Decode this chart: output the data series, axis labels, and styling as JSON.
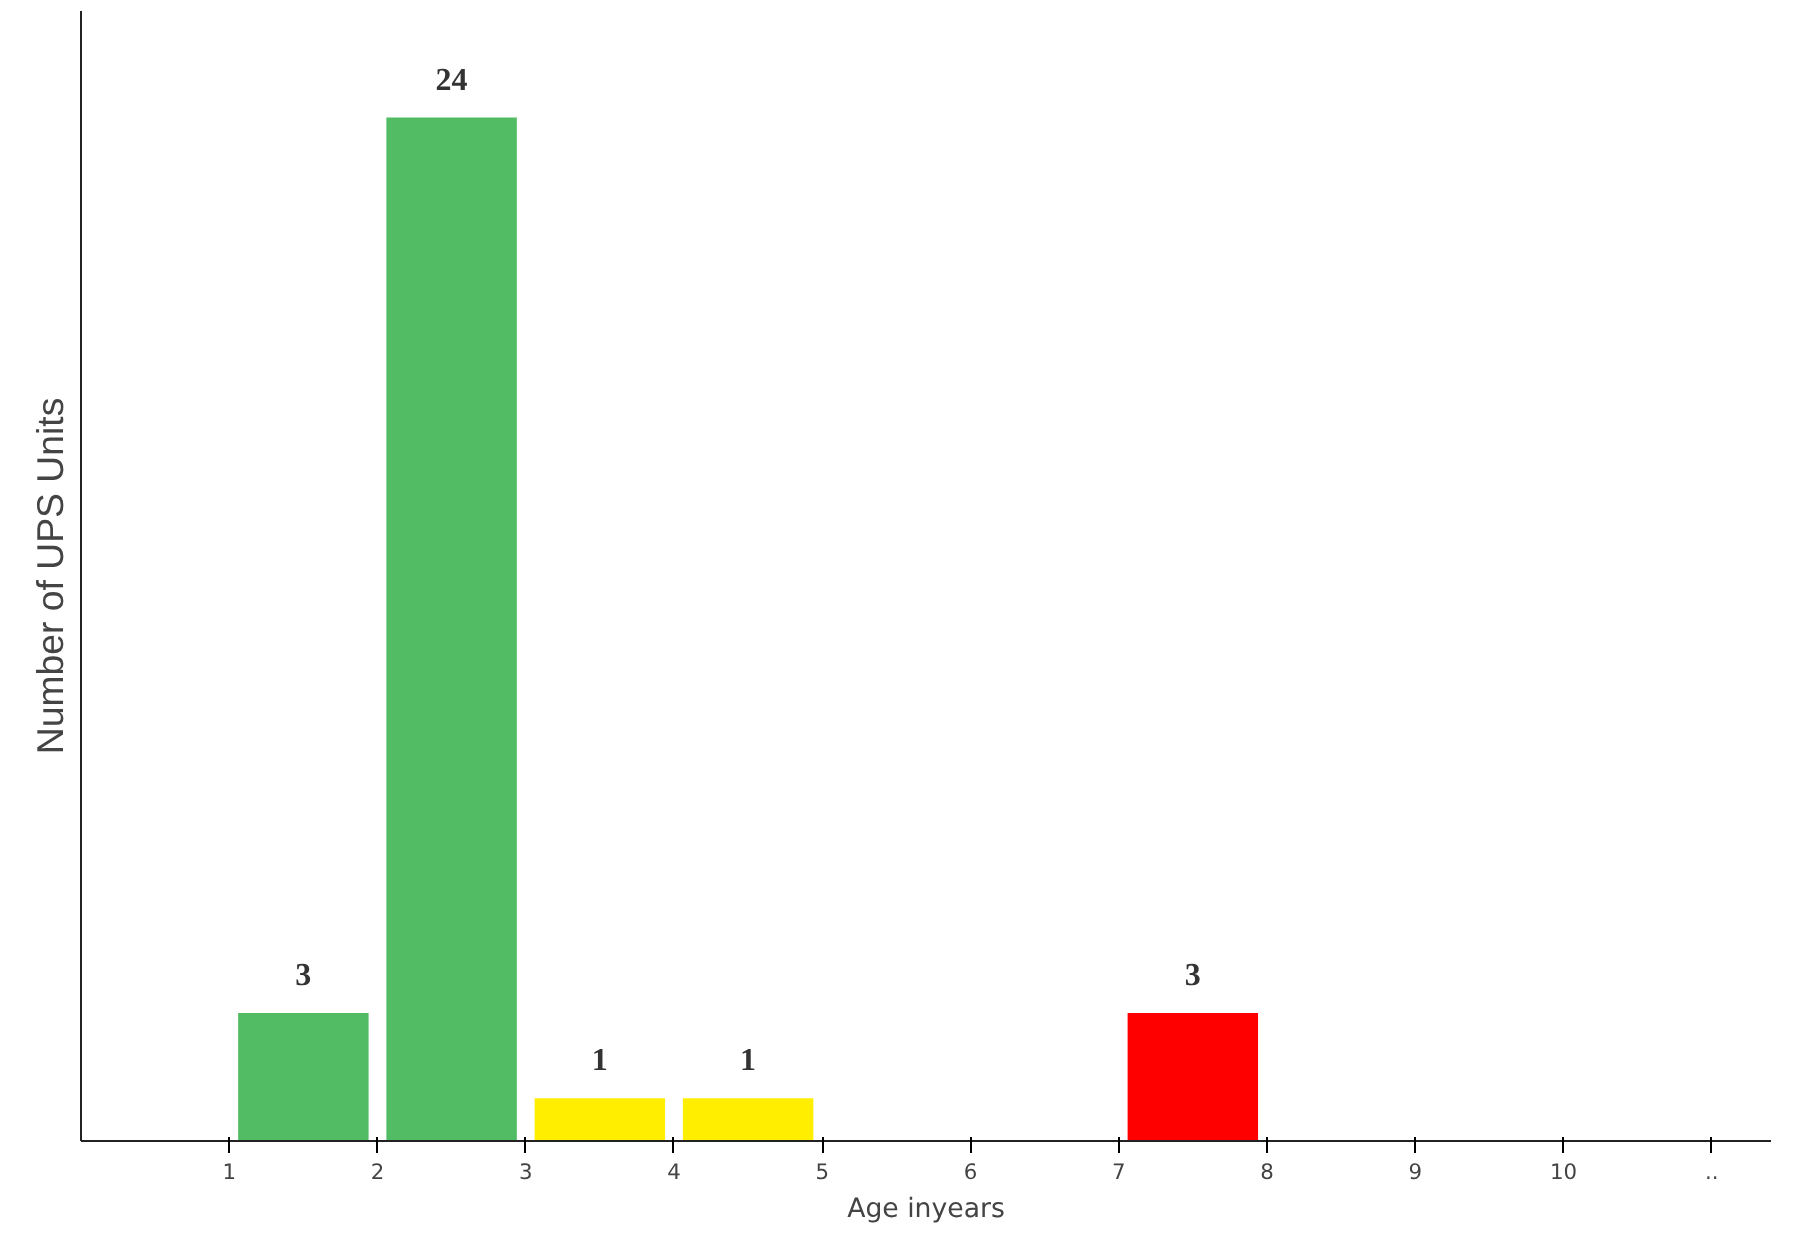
{
  "chart_data": {
    "type": "bar",
    "xlabel": "Age inyears",
    "ylabel": "Number of UPS Units",
    "x": [
      1.5,
      2.5,
      3.5,
      4.5,
      7.5
    ],
    "values": [
      3,
      24,
      1,
      1,
      3
    ],
    "colors": [
      "#52bc64",
      "#52bc64",
      "#ffee00",
      "#ffee00",
      "#ff0000"
    ],
    "data_labels": true,
    "xlim": [
      0,
      11.4
    ],
    "ylim": [
      0,
      26.5
    ],
    "xticks": [
      1,
      2,
      3,
      4,
      5,
      6,
      7,
      8,
      9,
      10,
      {
        "value": 11,
        "label": ".."
      }
    ],
    "tick_labels": "x",
    "grid": false
  }
}
